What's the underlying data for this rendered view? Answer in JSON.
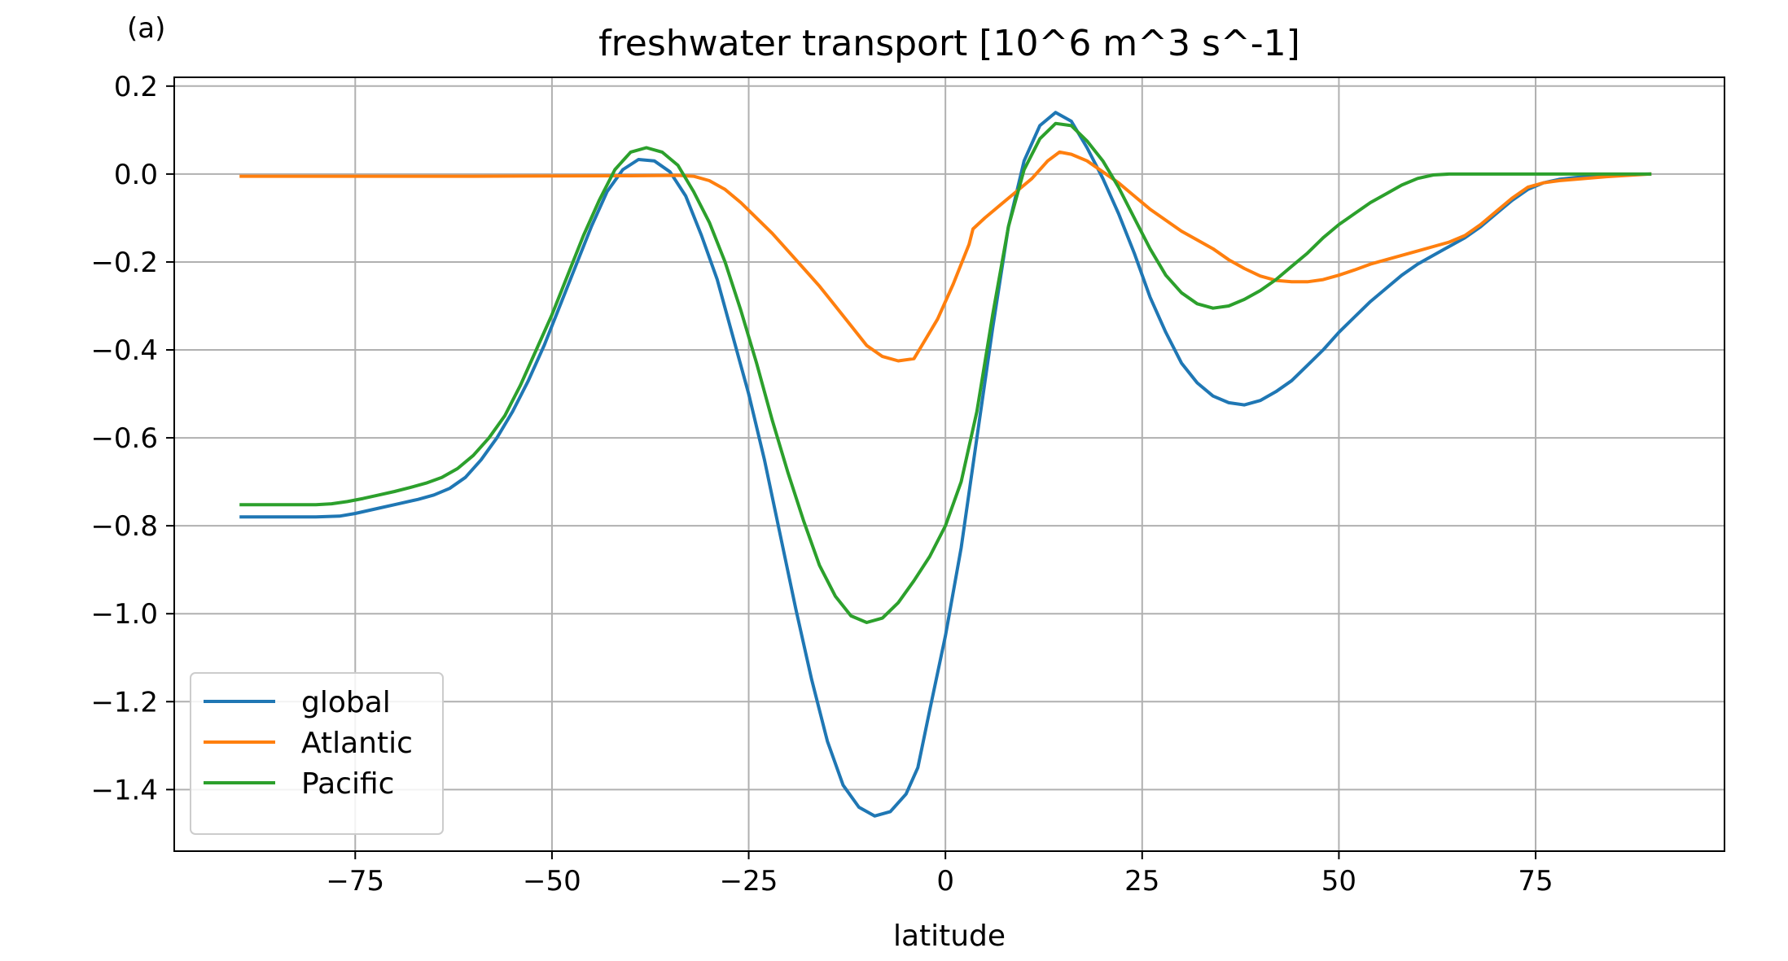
{
  "chart_data": {
    "type": "line",
    "panel_label": "(a)",
    "title": "freshwater transport [10^6 m^3 s^-1]",
    "xlabel": "latitude",
    "ylabel": "",
    "xlim": [
      -98,
      99
    ],
    "ylim": [
      -1.54,
      0.22
    ],
    "x_ticks": [
      -75,
      -50,
      -25,
      0,
      25,
      50,
      75
    ],
    "x_tick_labels": [
      "−75",
      "−50",
      "−25",
      "0",
      "25",
      "50",
      "75"
    ],
    "y_ticks": [
      0.2,
      0.0,
      -0.2,
      -0.4,
      -0.6,
      -0.8,
      -1.0,
      -1.2,
      -1.4
    ],
    "y_tick_labels": [
      "0.2",
      "0.0",
      "−0.2",
      "−0.4",
      "−0.6",
      "−0.8",
      "−1.0",
      "−1.2",
      "−1.4"
    ],
    "grid": true,
    "legend_position": "lower-left",
    "series": [
      {
        "name": "global",
        "color": "#1f77b4",
        "points": [
          [
            -89.5,
            -0.78
          ],
          [
            -80,
            -0.78
          ],
          [
            -77,
            -0.778
          ],
          [
            -75,
            -0.772
          ],
          [
            -72,
            -0.76
          ],
          [
            -70,
            -0.752
          ],
          [
            -67,
            -0.74
          ],
          [
            -65,
            -0.73
          ],
          [
            -63,
            -0.715
          ],
          [
            -61,
            -0.69
          ],
          [
            -59,
            -0.65
          ],
          [
            -57,
            -0.6
          ],
          [
            -55,
            -0.54
          ],
          [
            -53,
            -0.47
          ],
          [
            -51,
            -0.39
          ],
          [
            -49,
            -0.3
          ],
          [
            -47,
            -0.21
          ],
          [
            -45,
            -0.12
          ],
          [
            -43,
            -0.04
          ],
          [
            -41,
            0.01
          ],
          [
            -39,
            0.033
          ],
          [
            -37,
            0.03
          ],
          [
            -35,
            0.005
          ],
          [
            -33,
            -0.05
          ],
          [
            -31,
            -0.14
          ],
          [
            -29,
            -0.24
          ],
          [
            -27,
            -0.37
          ],
          [
            -25,
            -0.5
          ],
          [
            -23,
            -0.65
          ],
          [
            -21,
            -0.82
          ],
          [
            -19,
            -0.99
          ],
          [
            -17,
            -1.15
          ],
          [
            -15,
            -1.29
          ],
          [
            -13,
            -1.39
          ],
          [
            -11,
            -1.44
          ],
          [
            -9,
            -1.46
          ],
          [
            -7,
            -1.45
          ],
          [
            -5,
            -1.41
          ],
          [
            -3.5,
            -1.35
          ],
          [
            -2,
            -1.22
          ],
          [
            0,
            -1.05
          ],
          [
            2,
            -0.85
          ],
          [
            4,
            -0.6
          ],
          [
            6,
            -0.35
          ],
          [
            8,
            -0.12
          ],
          [
            10,
            0.03
          ],
          [
            12,
            0.11
          ],
          [
            14,
            0.14
          ],
          [
            16,
            0.12
          ],
          [
            18,
            0.06
          ],
          [
            20,
            -0.01
          ],
          [
            22,
            -0.09
          ],
          [
            24,
            -0.18
          ],
          [
            26,
            -0.28
          ],
          [
            28,
            -0.36
          ],
          [
            30,
            -0.43
          ],
          [
            32,
            -0.475
          ],
          [
            34,
            -0.505
          ],
          [
            36,
            -0.52
          ],
          [
            38,
            -0.525
          ],
          [
            40,
            -0.515
          ],
          [
            42,
            -0.495
          ],
          [
            44,
            -0.47
          ],
          [
            46,
            -0.435
          ],
          [
            48,
            -0.4
          ],
          [
            50,
            -0.36
          ],
          [
            52,
            -0.325
          ],
          [
            54,
            -0.29
          ],
          [
            56,
            -0.26
          ],
          [
            58,
            -0.23
          ],
          [
            60,
            -0.205
          ],
          [
            62,
            -0.185
          ],
          [
            64,
            -0.165
          ],
          [
            66,
            -0.145
          ],
          [
            68,
            -0.12
          ],
          [
            70,
            -0.09
          ],
          [
            72,
            -0.06
          ],
          [
            74,
            -0.035
          ],
          [
            76,
            -0.02
          ],
          [
            78,
            -0.012
          ],
          [
            80,
            -0.008
          ],
          [
            83,
            -0.004
          ],
          [
            86,
            -0.001
          ],
          [
            89.5,
            0.0
          ]
        ]
      },
      {
        "name": "Atlantic",
        "color": "#ff7f0e",
        "points": [
          [
            -89.5,
            -0.005
          ],
          [
            -60,
            -0.005
          ],
          [
            -40,
            -0.004
          ],
          [
            -34,
            -0.003
          ],
          [
            -32,
            -0.005
          ],
          [
            -30,
            -0.015
          ],
          [
            -28,
            -0.035
          ],
          [
            -26,
            -0.065
          ],
          [
            -24,
            -0.1
          ],
          [
            -22,
            -0.135
          ],
          [
            -20,
            -0.175
          ],
          [
            -18,
            -0.215
          ],
          [
            -16,
            -0.255
          ],
          [
            -14,
            -0.3
          ],
          [
            -12,
            -0.345
          ],
          [
            -10,
            -0.39
          ],
          [
            -8,
            -0.415
          ],
          [
            -6,
            -0.425
          ],
          [
            -4,
            -0.42
          ],
          [
            -3,
            -0.39
          ],
          [
            -1,
            -0.33
          ],
          [
            1,
            -0.25
          ],
          [
            3,
            -0.16
          ],
          [
            3.5,
            -0.125
          ],
          [
            5,
            -0.1
          ],
          [
            7,
            -0.07
          ],
          [
            9,
            -0.04
          ],
          [
            11,
            -0.01
          ],
          [
            13,
            0.03
          ],
          [
            14.5,
            0.05
          ],
          [
            16,
            0.045
          ],
          [
            18,
            0.03
          ],
          [
            20,
            0.005
          ],
          [
            22,
            -0.02
          ],
          [
            24,
            -0.05
          ],
          [
            26,
            -0.08
          ],
          [
            28,
            -0.105
          ],
          [
            30,
            -0.13
          ],
          [
            32,
            -0.15
          ],
          [
            34,
            -0.17
          ],
          [
            36,
            -0.195
          ],
          [
            38,
            -0.215
          ],
          [
            40,
            -0.232
          ],
          [
            42,
            -0.242
          ],
          [
            44,
            -0.245
          ],
          [
            46,
            -0.245
          ],
          [
            48,
            -0.24
          ],
          [
            50,
            -0.23
          ],
          [
            52,
            -0.218
          ],
          [
            54,
            -0.205
          ],
          [
            56,
            -0.195
          ],
          [
            58,
            -0.185
          ],
          [
            60,
            -0.175
          ],
          [
            62,
            -0.165
          ],
          [
            64,
            -0.155
          ],
          [
            66,
            -0.14
          ],
          [
            68,
            -0.115
          ],
          [
            70,
            -0.085
          ],
          [
            72,
            -0.055
          ],
          [
            74,
            -0.03
          ],
          [
            76,
            -0.02
          ],
          [
            78,
            -0.015
          ],
          [
            80,
            -0.012
          ],
          [
            84,
            -0.006
          ],
          [
            89.5,
            0.0
          ]
        ]
      },
      {
        "name": "Pacific",
        "color": "#2ca02c",
        "points": [
          [
            -89.5,
            -0.752
          ],
          [
            -80,
            -0.752
          ],
          [
            -78,
            -0.75
          ],
          [
            -76,
            -0.745
          ],
          [
            -74,
            -0.738
          ],
          [
            -72,
            -0.73
          ],
          [
            -70,
            -0.722
          ],
          [
            -68,
            -0.713
          ],
          [
            -66,
            -0.703
          ],
          [
            -64,
            -0.69
          ],
          [
            -62,
            -0.67
          ],
          [
            -60,
            -0.64
          ],
          [
            -58,
            -0.6
          ],
          [
            -56,
            -0.55
          ],
          [
            -54,
            -0.48
          ],
          [
            -52,
            -0.4
          ],
          [
            -50,
            -0.32
          ],
          [
            -48,
            -0.23
          ],
          [
            -46,
            -0.14
          ],
          [
            -44,
            -0.06
          ],
          [
            -42,
            0.01
          ],
          [
            -40,
            0.05
          ],
          [
            -38,
            0.06
          ],
          [
            -36,
            0.05
          ],
          [
            -34,
            0.02
          ],
          [
            -32,
            -0.04
          ],
          [
            -30,
            -0.11
          ],
          [
            -28,
            -0.2
          ],
          [
            -26,
            -0.31
          ],
          [
            -24,
            -0.43
          ],
          [
            -22,
            -0.56
          ],
          [
            -20,
            -0.68
          ],
          [
            -18,
            -0.79
          ],
          [
            -16,
            -0.89
          ],
          [
            -14,
            -0.96
          ],
          [
            -12,
            -1.005
          ],
          [
            -10,
            -1.02
          ],
          [
            -8,
            -1.01
          ],
          [
            -6,
            -0.975
          ],
          [
            -4,
            -0.925
          ],
          [
            -2,
            -0.87
          ],
          [
            0,
            -0.8
          ],
          [
            2,
            -0.7
          ],
          [
            4,
            -0.54
          ],
          [
            6,
            -0.32
          ],
          [
            8,
            -0.12
          ],
          [
            10,
            0.01
          ],
          [
            12,
            0.08
          ],
          [
            14,
            0.115
          ],
          [
            16,
            0.11
          ],
          [
            18,
            0.075
          ],
          [
            20,
            0.03
          ],
          [
            22,
            -0.03
          ],
          [
            24,
            -0.1
          ],
          [
            26,
            -0.17
          ],
          [
            28,
            -0.23
          ],
          [
            30,
            -0.27
          ],
          [
            32,
            -0.295
          ],
          [
            34,
            -0.305
          ],
          [
            36,
            -0.3
          ],
          [
            38,
            -0.285
          ],
          [
            40,
            -0.265
          ],
          [
            42,
            -0.24
          ],
          [
            44,
            -0.21
          ],
          [
            46,
            -0.18
          ],
          [
            48,
            -0.145
          ],
          [
            50,
            -0.115
          ],
          [
            52,
            -0.09
          ],
          [
            54,
            -0.065
          ],
          [
            56,
            -0.045
          ],
          [
            58,
            -0.025
          ],
          [
            60,
            -0.01
          ],
          [
            62,
            -0.002
          ],
          [
            64,
            0.0
          ],
          [
            89.5,
            0.0
          ]
        ]
      }
    ]
  }
}
